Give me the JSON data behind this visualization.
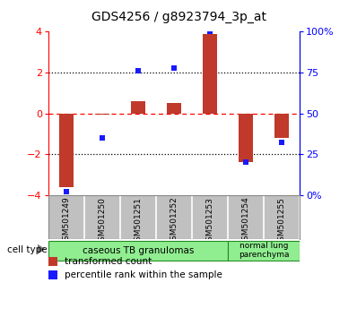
{
  "title": "GDS4256 / g8923794_3p_at",
  "samples": [
    "GSM501249",
    "GSM501250",
    "GSM501251",
    "GSM501252",
    "GSM501253",
    "GSM501254",
    "GSM501255"
  ],
  "transformed_count": [
    -3.6,
    -0.05,
    0.6,
    0.5,
    3.9,
    -2.4,
    -1.2
  ],
  "percentile_rank": [
    2,
    35,
    76,
    78,
    100,
    20,
    32
  ],
  "ylim_left": [
    -4,
    4
  ],
  "ylim_right": [
    0,
    100
  ],
  "yticks_left": [
    -4,
    -2,
    0,
    2,
    4
  ],
  "yticks_right": [
    0,
    25,
    50,
    75,
    100
  ],
  "yticklabels_right": [
    "0%",
    "25",
    "50",
    "75",
    "100%"
  ],
  "bar_color": "#c0392b",
  "dot_color": "#1a1aff",
  "bar_width": 0.4,
  "legend_bar_label": "transformed count",
  "legend_dot_label": "percentile rank within the sample",
  "cell_type_label": "cell type",
  "group1_count": 5,
  "group1_label": "caseous TB granulomas",
  "group2_label": "normal lung\nparenchyma",
  "group_color": "#90ee90",
  "group_border": "#228B22",
  "sample_box_color": "#c0c0c0",
  "sample_box_border": "#888888",
  "background_color": "#ffffff"
}
